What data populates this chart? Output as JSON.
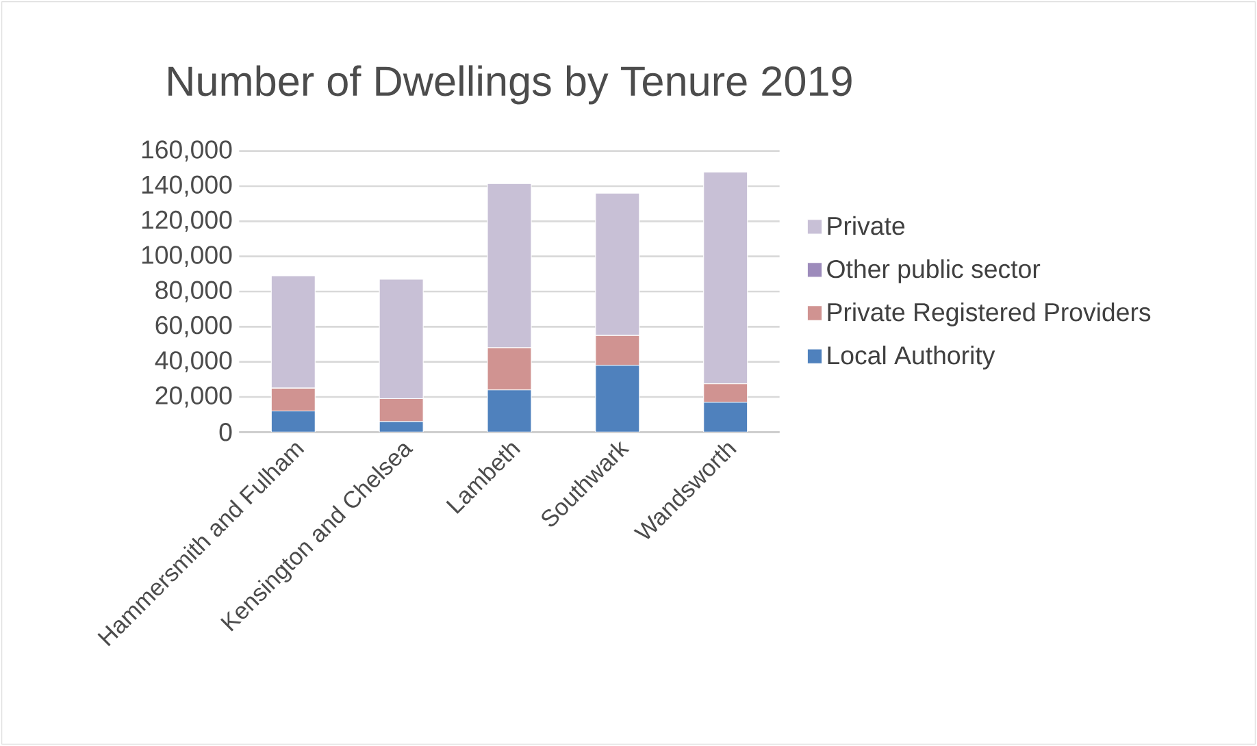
{
  "chart_data": {
    "type": "bar",
    "title": "Number of Dwellings by Tenure 2019",
    "stacked": true,
    "categories": [
      "Hammersmith and Fulham",
      "Kensington and Chelsea",
      "Lambeth",
      "Southwark",
      "Wandsworth"
    ],
    "series": [
      {
        "name": "Local Authority",
        "color": "#4f81bd",
        "values": [
          12000,
          6000,
          24000,
          38000,
          17000
        ]
      },
      {
        "name": "Private Registered Providers",
        "color": "#d09391",
        "values": [
          13000,
          13000,
          24000,
          17000,
          10500
        ]
      },
      {
        "name": "Other public sector",
        "color": "#9d8bbb",
        "values": [
          0,
          0,
          0,
          0,
          0
        ]
      },
      {
        "name": "Private",
        "color": "#c8c0d6",
        "values": [
          64000,
          68000,
          93500,
          81000,
          120500
        ]
      }
    ],
    "ylim": [
      0,
      160000
    ],
    "yticks": [
      0,
      {
        "value": 20000,
        "label": "20,000"
      },
      {
        "value": 40000,
        "label": "40,000"
      },
      {
        "value": 60000,
        "label": "60,000"
      },
      {
        "value": 80000,
        "label": "80,000"
      },
      {
        "value": 100000,
        "label": "100,000"
      },
      {
        "value": 120000,
        "label": "120,000"
      },
      {
        "value": 140000,
        "label": "140,000"
      },
      {
        "value": 160000,
        "label": "160,000"
      }
    ],
    "grid": "y",
    "legend": "right"
  }
}
